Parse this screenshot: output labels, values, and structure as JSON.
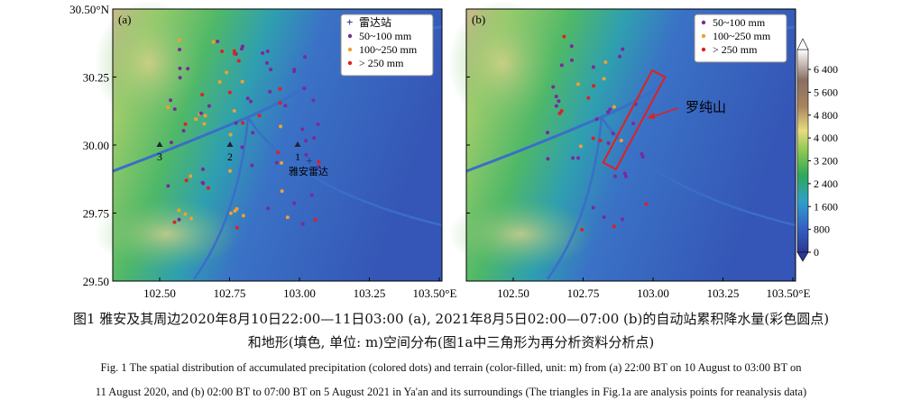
{
  "panels": [
    {
      "label": "(a)",
      "legend": [
        "雷达站",
        "50~100 mm",
        "100~250 mm",
        "> 250 mm"
      ],
      "points": [
        "1",
        "2",
        "3"
      ],
      "radar": "雅安雷达"
    },
    {
      "label": "(b)",
      "legend": [
        "50~100 mm",
        "100~250 mm",
        "> 250 mm"
      ],
      "mountain": "罗纯山"
    }
  ],
  "axes": {
    "x_ticks": [
      "102.50",
      "102.75",
      "103.00",
      "103.25",
      "103.50°E"
    ],
    "y_ticks": [
      "30.50°N",
      "30.25",
      "30.00",
      "29.75",
      "29.50"
    ]
  },
  "colorbar": {
    "ticks": [
      "6 400",
      "5 600",
      "4 800",
      "4 000",
      "3 200",
      "2 400",
      "1 600",
      "800",
      "0"
    ]
  },
  "caption": {
    "zh": [
      "图1 雅安及其周边2020年8月10日22:00—11日03:00 (a), 2021年8月5日02:00—07:00 (b)的自动站累积降水量(彩色圆点)",
      "和地形(填色, 单位: m)空间分布(图1a中三角形为再分析资料分析点)"
    ],
    "en": [
      "Fig. 1 The spatial distribution of accumulated precipitation (colored dots) and terrain (color-filled, unit: m) from (a) 22:00 BT on 10 August to 03:00 BT on",
      "11 August 2020, and (b) 02:00 BT to 07:00 BT on 5 August 2021 in Ya'an and its surroundings (The triangles in Fig.1a are analysis points for reanalysis data)"
    ]
  }
}
